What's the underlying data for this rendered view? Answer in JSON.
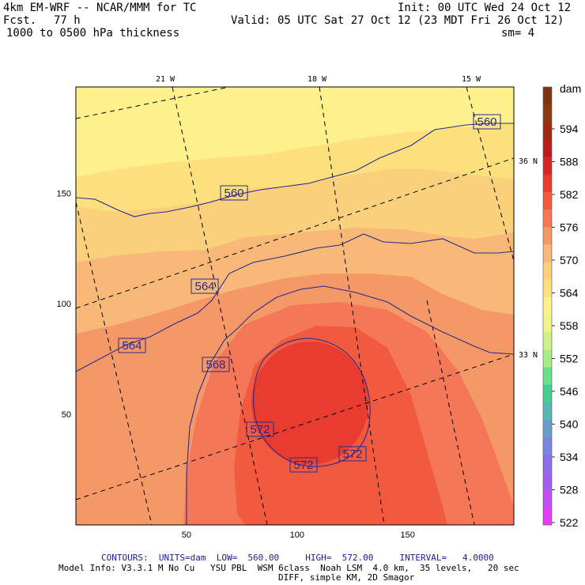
{
  "header": {
    "model_title": "4km EM-WRF -- NCAR/MMM for TC",
    "init": "Init: 00 UTC Wed 24 Oct 12",
    "fcst_label": "Fcst.",
    "fcst_value": "77 h",
    "valid": "Valid: 05 UTC Sat 27 Oct 12 (23 MDT Fri 26 Oct 12)",
    "field": "1000 to 0500 hPa thickness",
    "smoothing": "sm= 4"
  },
  "map": {
    "top_lon_labels": [
      "21 W",
      "18 W",
      "15 W"
    ],
    "right_lat_labels": [
      "36 N",
      "33 N"
    ],
    "x_axis_ticks": [
      50,
      100,
      150
    ],
    "y_axis_ticks": [
      50,
      100,
      150
    ],
    "contour_labels": [
      "560",
      "560",
      "564",
      "564",
      "568",
      "572",
      "572",
      "572"
    ],
    "contour_color": "#2a2a8c"
  },
  "colorbar": {
    "unit": "dam",
    "labels": [
      "594",
      "588",
      "582",
      "576",
      "570",
      "564",
      "558",
      "552",
      "546",
      "540",
      "534",
      "528",
      "522"
    ],
    "colors": [
      "#7a3410",
      "#8c3a12",
      "#9e2a14",
      "#b81e1e",
      "#d22828",
      "#e83c30",
      "#f25a40",
      "#f47858",
      "#f59868",
      "#f8b878",
      "#fbd07c",
      "#fde07e",
      "#fef08a",
      "#eef38a",
      "#d2f08a",
      "#a8ec8a",
      "#6ae08a",
      "#48cc90",
      "#5ab6b2",
      "#6a9cc8",
      "#7a86dc",
      "#8a70e6",
      "#a060ec",
      "#c050f0",
      "#e040f4"
    ]
  },
  "footer": {
    "contours": "CONTOURS:  UNITS=dam  LOW=  560.00     HIGH=  572.00     INTERVAL=   4.0000",
    "model_info": "Model Info: V3.3.1 M No Cu   YSU PBL  WSM 6class  Noah LSM  4.0 km,  35 levels,   20 sec",
    "diff": "DIFF, simple KM, 2D Smagor"
  }
}
